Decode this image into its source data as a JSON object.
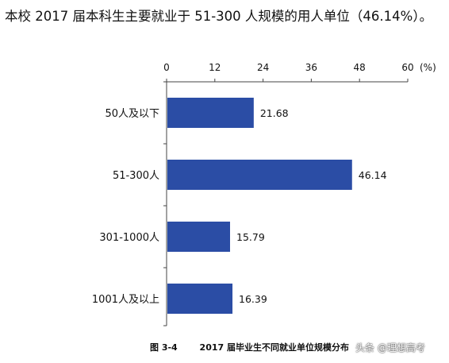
{
  "headline": "本校 2017 届本科生主要就业于 51-300 人规模的用人单位（46.14%）。",
  "caption": {
    "figure_label": "图 3-4",
    "title": "2017 届毕业生不同就业单位规模分布"
  },
  "watermark": "头条 @理想高考",
  "chart_data": {
    "type": "bar",
    "orientation": "horizontal",
    "title": "",
    "categories": [
      "50人及以下",
      "51-300人",
      "301-1000人",
      "1001人及以上"
    ],
    "values": [
      21.68,
      46.14,
      15.79,
      16.39
    ],
    "value_labels": [
      "21.68",
      "46.14",
      "15.79",
      "16.39"
    ],
    "xaxis": {
      "position": "top",
      "min": 0,
      "max": 60,
      "ticks": [
        0,
        12,
        24,
        36,
        48,
        60
      ],
      "tick_labels": [
        "0",
        "12",
        "24",
        "36",
        "48",
        "60"
      ],
      "unit": "(%)"
    },
    "bar_color": "#2B4DA5",
    "grid": false,
    "legend": "none"
  }
}
